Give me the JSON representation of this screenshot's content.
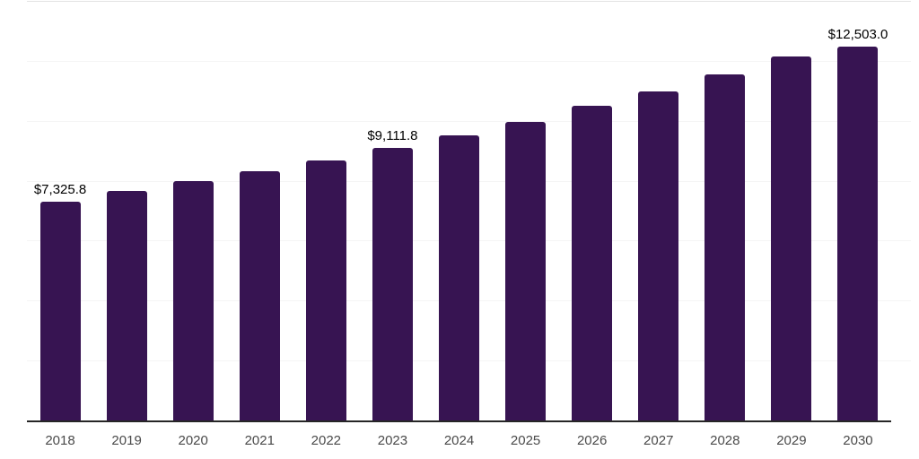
{
  "chart_data": {
    "type": "bar",
    "title": "",
    "xlabel": "",
    "ylabel": "",
    "categories": [
      "2018",
      "2019",
      "2020",
      "2021",
      "2022",
      "2023",
      "2024",
      "2025",
      "2026",
      "2027",
      "2028",
      "2029",
      "2030"
    ],
    "values": [
      7325.8,
      7700,
      8030,
      8350,
      8710,
      9111.8,
      9540,
      10000,
      10520,
      11010,
      11570,
      12190,
      12503.0
    ],
    "value_labels": [
      "$7,325.8",
      "",
      "",
      "",
      "",
      "$9,111.8",
      "",
      "",
      "",
      "",
      "",
      "",
      "$12,503.0"
    ],
    "ylim": [
      0,
      14000
    ],
    "gridline_step": 2000,
    "grid": "horizontal",
    "legend": "none",
    "colors": {
      "bar": "#371452",
      "axis_line": "#262626",
      "gridline": "#f5f5f5",
      "top_gridline": "#e3e3e3",
      "data_label": "#000000",
      "tick_label": "#4a4a4a",
      "background": "#ffffff"
    }
  }
}
